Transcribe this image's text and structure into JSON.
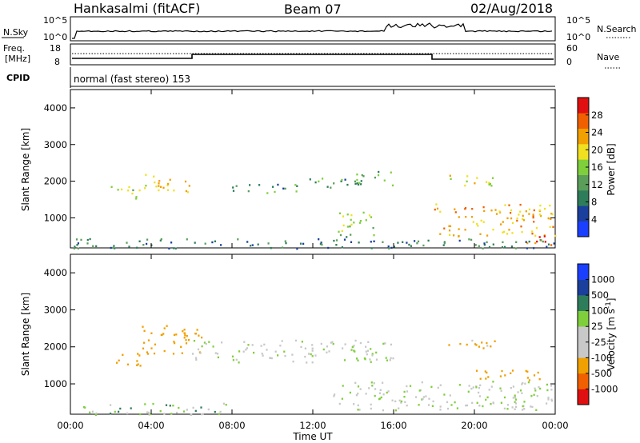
{
  "header": {
    "radar": "Hankasalmi (fitACF)",
    "beam": "Beam 07",
    "date": "02/Aug/2018"
  },
  "summary": {
    "nsky_label": "N.Sky",
    "nsearch_label": "N.Search",
    "freq_label_line1": "Freq.",
    "freq_label_line2": "[MHz]",
    "cpid_label": "CPID",
    "nave_label": "Nave",
    "noise_ticks": [
      "10^5",
      "10^0"
    ],
    "freq_ticks": [
      "18",
      "8"
    ],
    "nave_ticks": [
      "60",
      "0"
    ],
    "cpid_text": "normal (fast stereo) 153"
  },
  "colors": {
    "power_scale": [
      "#1a3fff",
      "#1a3f9c",
      "#2e7d5a",
      "#5a9e5a",
      "#7fcf3c",
      "#f0e020",
      "#f0a000",
      "#f06000",
      "#e01010"
    ],
    "velocity_scale": [
      "#e01010",
      "#f06000",
      "#f0a000",
      "#c8c8c8",
      "#c8c8c8",
      "#7fcf3c",
      "#2e7d5a",
      "#1a3f9c",
      "#1a3fff"
    ],
    "ground_scatter": "#c8c8c8"
  },
  "chart_data": [
    {
      "type": "heatmap",
      "name": "power",
      "ylabel": "Slant Range [km]",
      "xlabel": "",
      "colorbar_label": "Power [dB]",
      "colorbar_ticks": [
        "28",
        "24",
        "20",
        "16",
        "12",
        "8",
        "4"
      ],
      "ylim": [
        180,
        4500
      ],
      "yticks": [
        "4000",
        "3000",
        "2000",
        "1000"
      ],
      "xlim": [
        0,
        24
      ],
      "xticks": [
        "00:00",
        "04:00",
        "08:00",
        "12:00",
        "16:00",
        "20:00",
        "00:00"
      ],
      "patches": [
        {
          "t": [
            2.0,
            3.5
          ],
          "r": [
            1500,
            1900
          ],
          "level": 16
        },
        {
          "t": [
            3.5,
            6.0
          ],
          "r": [
            1700,
            2200
          ],
          "level": 20
        },
        {
          "t": [
            8.0,
            11.5
          ],
          "r": [
            1700,
            1950
          ],
          "level": 10
        },
        {
          "t": [
            11.5,
            14.5
          ],
          "r": [
            1800,
            2100
          ],
          "level": 10
        },
        {
          "t": [
            14.0,
            16.0
          ],
          "r": [
            1900,
            2300
          ],
          "level": 12
        },
        {
          "t": [
            13.0,
            15.0
          ],
          "r": [
            500,
            1200
          ],
          "level": 14
        },
        {
          "t": [
            18.5,
            21.0
          ],
          "r": [
            1900,
            2200
          ],
          "level": 18
        },
        {
          "t": [
            18.0,
            24.0
          ],
          "r": [
            500,
            1400
          ],
          "level": 22
        },
        {
          "t": [
            22.5,
            24.0
          ],
          "r": [
            250,
            550
          ],
          "level": 28
        },
        {
          "t": [
            0.0,
            24.0
          ],
          "r": [
            180,
            450
          ],
          "level": 8
        }
      ]
    },
    {
      "type": "heatmap",
      "name": "velocity",
      "ylabel": "Slant Range [km]",
      "xlabel": "Time UT",
      "colorbar_label": "Velocity [m s^-1]",
      "colorbar_ticks": [
        "1000",
        "500",
        "100",
        "25",
        "-25",
        "-100",
        "-500",
        "-1000"
      ],
      "ylim": [
        180,
        4500
      ],
      "yticks": [
        "4000",
        "3000",
        "2000",
        "1000"
      ],
      "xlim": [
        0,
        24
      ],
      "xticks": [
        "00:00",
        "04:00",
        "08:00",
        "12:00",
        "16:00",
        "20:00",
        "00:00"
      ],
      "patches": [
        {
          "t": [
            2.0,
            3.5
          ],
          "r": [
            1500,
            1900
          ],
          "level": -300
        },
        {
          "t": [
            3.5,
            6.5
          ],
          "r": [
            1800,
            2600
          ],
          "level": -200
        },
        {
          "t": [
            6.0,
            16.0
          ],
          "r": [
            1600,
            2200
          ],
          "level": 0
        },
        {
          "t": [
            13.0,
            24.0
          ],
          "r": [
            300,
            1100
          ],
          "level": 0
        },
        {
          "t": [
            18.5,
            21.0
          ],
          "r": [
            1900,
            2200
          ],
          "level": -150
        },
        {
          "t": [
            20.0,
            23.5
          ],
          "r": [
            1100,
            1400
          ],
          "level": -400
        },
        {
          "t": [
            0.0,
            8.0
          ],
          "r": [
            180,
            500
          ],
          "level": 50
        }
      ]
    }
  ]
}
